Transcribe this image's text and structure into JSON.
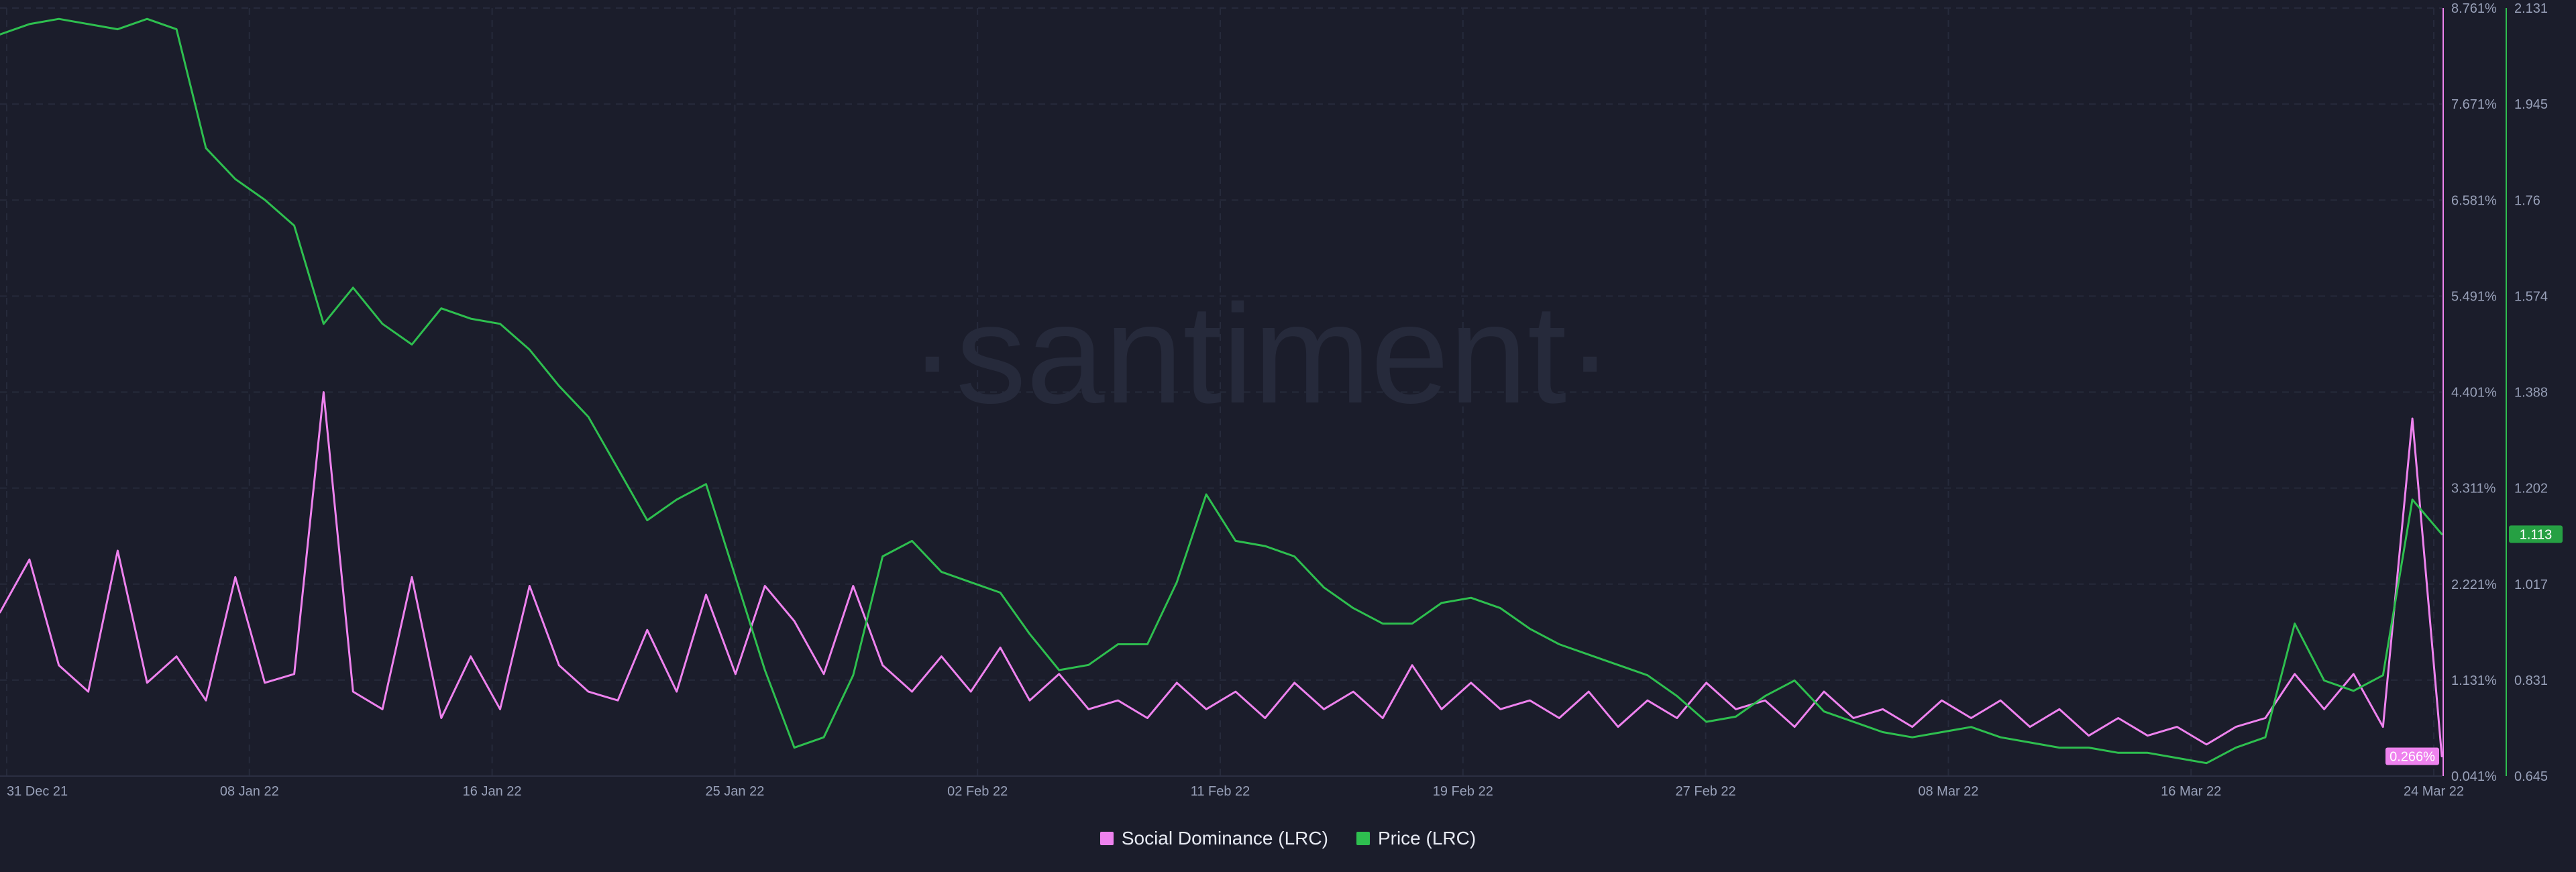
{
  "watermark": "·santiment·",
  "legend": {
    "items": [
      {
        "label": "Social Dominance (LRC)",
        "color": "#ee82ee"
      },
      {
        "label": "Price (LRC)",
        "color": "#2ebf4f"
      }
    ]
  },
  "chart_data": {
    "type": "line",
    "title": "",
    "grid": true,
    "legend_position": "bottom-center",
    "x_range": [
      "2021-12-31",
      "2022-03-24"
    ],
    "x_ticks": [
      "31 Dec 21",
      "08 Jan 22",
      "16 Jan 22",
      "25 Jan 22",
      "02 Feb 22",
      "11 Feb 22",
      "19 Feb 22",
      "27 Feb 22",
      "08 Mar 22",
      "16 Mar 22",
      "24 Mar 22"
    ],
    "axes": {
      "social_dominance": {
        "side": "right",
        "unit": "%",
        "range": [
          0.041,
          8.761
        ],
        "ticks": [
          "8.761%",
          "7.671%",
          "6.581%",
          "5.491%",
          "4.401%",
          "3.311%",
          "2.221%",
          "1.131%",
          "0.041%"
        ],
        "current_value_label": "0.266%",
        "color": "#ee82ee"
      },
      "price": {
        "side": "right",
        "range": [
          0.645,
          2.131
        ],
        "ticks": [
          "2.131",
          "1.945",
          "1.76",
          "1.574",
          "1.388",
          "1.202",
          "1.017",
          "0.831",
          "0.645"
        ],
        "current_value_label": "1.113",
        "color": "#2ebf4f"
      }
    },
    "series": [
      {
        "name": "Social Dominance (LRC)",
        "axis": "social_dominance",
        "color": "#ee82ee",
        "points": [
          [
            "2021-12-31",
            1.9
          ],
          [
            "2022-01-01",
            2.5
          ],
          [
            "2022-01-02",
            1.3
          ],
          [
            "2022-01-03",
            1.0
          ],
          [
            "2022-01-04",
            2.6
          ],
          [
            "2022-01-05",
            1.1
          ],
          [
            "2022-01-06",
            1.4
          ],
          [
            "2022-01-07",
            0.9
          ],
          [
            "2022-01-08",
            2.3
          ],
          [
            "2022-01-09",
            1.1
          ],
          [
            "2022-01-10",
            1.2
          ],
          [
            "2022-01-11",
            4.4
          ],
          [
            "2022-01-12",
            1.0
          ],
          [
            "2022-01-13",
            0.8
          ],
          [
            "2022-01-14",
            2.3
          ],
          [
            "2022-01-15",
            0.7
          ],
          [
            "2022-01-16",
            1.4
          ],
          [
            "2022-01-17",
            0.8
          ],
          [
            "2022-01-18",
            2.2
          ],
          [
            "2022-01-19",
            1.3
          ],
          [
            "2022-01-20",
            1.0
          ],
          [
            "2022-01-21",
            0.9
          ],
          [
            "2022-01-22",
            1.7
          ],
          [
            "2022-01-23",
            1.0
          ],
          [
            "2022-01-24",
            2.1
          ],
          [
            "2022-01-25",
            1.2
          ],
          [
            "2022-01-26",
            2.2
          ],
          [
            "2022-01-27",
            1.8
          ],
          [
            "2022-01-28",
            1.2
          ],
          [
            "2022-01-29",
            2.2
          ],
          [
            "2022-01-30",
            1.3
          ],
          [
            "2022-01-31",
            1.0
          ],
          [
            "2022-02-01",
            1.4
          ],
          [
            "2022-02-02",
            1.0
          ],
          [
            "2022-02-03",
            1.5
          ],
          [
            "2022-02-04",
            0.9
          ],
          [
            "2022-02-05",
            1.2
          ],
          [
            "2022-02-06",
            0.8
          ],
          [
            "2022-02-07",
            0.9
          ],
          [
            "2022-02-08",
            0.7
          ],
          [
            "2022-02-09",
            1.1
          ],
          [
            "2022-02-10",
            0.8
          ],
          [
            "2022-02-11",
            1.0
          ],
          [
            "2022-02-12",
            0.7
          ],
          [
            "2022-02-13",
            1.1
          ],
          [
            "2022-02-14",
            0.8
          ],
          [
            "2022-02-15",
            1.0
          ],
          [
            "2022-02-16",
            0.7
          ],
          [
            "2022-02-17",
            1.3
          ],
          [
            "2022-02-18",
            0.8
          ],
          [
            "2022-02-19",
            1.1
          ],
          [
            "2022-02-20",
            0.8
          ],
          [
            "2022-02-21",
            0.9
          ],
          [
            "2022-02-22",
            0.7
          ],
          [
            "2022-02-23",
            1.0
          ],
          [
            "2022-02-24",
            0.6
          ],
          [
            "2022-02-25",
            0.9
          ],
          [
            "2022-02-26",
            0.7
          ],
          [
            "2022-02-27",
            1.1
          ],
          [
            "2022-02-28",
            0.8
          ],
          [
            "2022-03-01",
            0.9
          ],
          [
            "2022-03-02",
            0.6
          ],
          [
            "2022-03-03",
            1.0
          ],
          [
            "2022-03-04",
            0.7
          ],
          [
            "2022-03-05",
            0.8
          ],
          [
            "2022-03-06",
            0.6
          ],
          [
            "2022-03-07",
            0.9
          ],
          [
            "2022-03-08",
            0.7
          ],
          [
            "2022-03-09",
            0.9
          ],
          [
            "2022-03-10",
            0.6
          ],
          [
            "2022-03-11",
            0.8
          ],
          [
            "2022-03-12",
            0.5
          ],
          [
            "2022-03-13",
            0.7
          ],
          [
            "2022-03-14",
            0.5
          ],
          [
            "2022-03-15",
            0.6
          ],
          [
            "2022-03-16",
            0.4
          ],
          [
            "2022-03-17",
            0.6
          ],
          [
            "2022-03-18",
            0.7
          ],
          [
            "2022-03-19",
            1.2
          ],
          [
            "2022-03-20",
            0.8
          ],
          [
            "2022-03-21",
            1.2
          ],
          [
            "2022-03-22",
            0.6
          ],
          [
            "2022-03-23",
            4.1
          ],
          [
            "2022-03-24",
            0.266
          ]
        ]
      },
      {
        "name": "Price (LRC)",
        "axis": "price",
        "color": "#2ebf4f",
        "points": [
          [
            "2021-12-31",
            2.08
          ],
          [
            "2022-01-01",
            2.1
          ],
          [
            "2022-01-02",
            2.11
          ],
          [
            "2022-01-03",
            2.1
          ],
          [
            "2022-01-04",
            2.09
          ],
          [
            "2022-01-05",
            2.11
          ],
          [
            "2022-01-06",
            2.09
          ],
          [
            "2022-01-07",
            1.86
          ],
          [
            "2022-01-08",
            1.8
          ],
          [
            "2022-01-09",
            1.76
          ],
          [
            "2022-01-10",
            1.71
          ],
          [
            "2022-01-11",
            1.52
          ],
          [
            "2022-01-12",
            1.59
          ],
          [
            "2022-01-13",
            1.52
          ],
          [
            "2022-01-14",
            1.48
          ],
          [
            "2022-01-15",
            1.55
          ],
          [
            "2022-01-16",
            1.53
          ],
          [
            "2022-01-17",
            1.52
          ],
          [
            "2022-01-18",
            1.47
          ],
          [
            "2022-01-19",
            1.4
          ],
          [
            "2022-01-20",
            1.34
          ],
          [
            "2022-01-21",
            1.24
          ],
          [
            "2022-01-22",
            1.14
          ],
          [
            "2022-01-23",
            1.18
          ],
          [
            "2022-01-24",
            1.21
          ],
          [
            "2022-01-25",
            1.03
          ],
          [
            "2022-01-26",
            0.85
          ],
          [
            "2022-01-27",
            0.7
          ],
          [
            "2022-01-28",
            0.72
          ],
          [
            "2022-01-29",
            0.84
          ],
          [
            "2022-01-30",
            1.07
          ],
          [
            "2022-01-31",
            1.1
          ],
          [
            "2022-02-01",
            1.04
          ],
          [
            "2022-02-02",
            1.02
          ],
          [
            "2022-02-03",
            1.0
          ],
          [
            "2022-02-04",
            0.92
          ],
          [
            "2022-02-05",
            0.85
          ],
          [
            "2022-02-06",
            0.86
          ],
          [
            "2022-02-07",
            0.9
          ],
          [
            "2022-02-08",
            0.9
          ],
          [
            "2022-02-09",
            1.02
          ],
          [
            "2022-02-10",
            1.19
          ],
          [
            "2022-02-11",
            1.1
          ],
          [
            "2022-02-12",
            1.09
          ],
          [
            "2022-02-13",
            1.07
          ],
          [
            "2022-02-14",
            1.01
          ],
          [
            "2022-02-15",
            0.97
          ],
          [
            "2022-02-16",
            0.94
          ],
          [
            "2022-02-17",
            0.94
          ],
          [
            "2022-02-18",
            0.98
          ],
          [
            "2022-02-19",
            0.99
          ],
          [
            "2022-02-20",
            0.97
          ],
          [
            "2022-02-21",
            0.93
          ],
          [
            "2022-02-22",
            0.9
          ],
          [
            "2022-02-23",
            0.88
          ],
          [
            "2022-02-24",
            0.86
          ],
          [
            "2022-02-25",
            0.84
          ],
          [
            "2022-02-26",
            0.8
          ],
          [
            "2022-02-27",
            0.75
          ],
          [
            "2022-02-28",
            0.76
          ],
          [
            "2022-03-01",
            0.8
          ],
          [
            "2022-03-02",
            0.83
          ],
          [
            "2022-03-03",
            0.77
          ],
          [
            "2022-03-04",
            0.75
          ],
          [
            "2022-03-05",
            0.73
          ],
          [
            "2022-03-06",
            0.72
          ],
          [
            "2022-03-07",
            0.73
          ],
          [
            "2022-03-08",
            0.74
          ],
          [
            "2022-03-09",
            0.72
          ],
          [
            "2022-03-10",
            0.71
          ],
          [
            "2022-03-11",
            0.7
          ],
          [
            "2022-03-12",
            0.7
          ],
          [
            "2022-03-13",
            0.69
          ],
          [
            "2022-03-14",
            0.69
          ],
          [
            "2022-03-15",
            0.68
          ],
          [
            "2022-03-16",
            0.67
          ],
          [
            "2022-03-17",
            0.7
          ],
          [
            "2022-03-18",
            0.72
          ],
          [
            "2022-03-19",
            0.94
          ],
          [
            "2022-03-20",
            0.83
          ],
          [
            "2022-03-21",
            0.81
          ],
          [
            "2022-03-22",
            0.84
          ],
          [
            "2022-03-23",
            1.18
          ],
          [
            "2022-03-24",
            1.113
          ]
        ]
      }
    ]
  }
}
